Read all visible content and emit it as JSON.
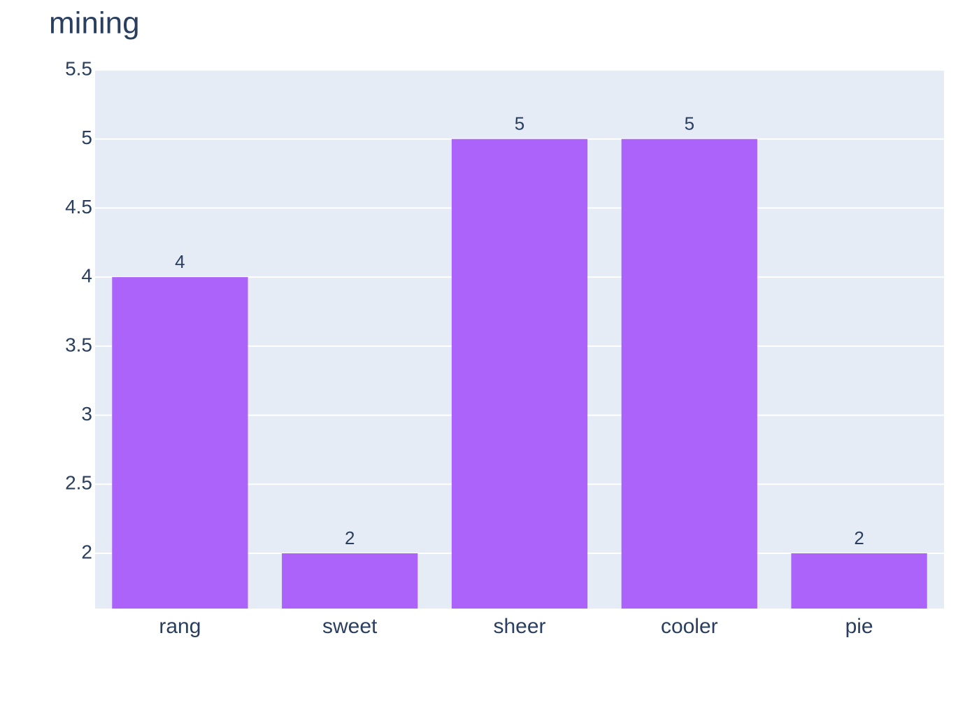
{
  "chart_data": {
    "type": "bar",
    "title": "mining",
    "categories": [
      "rang",
      "sweet",
      "sheer",
      "cooler",
      "pie"
    ],
    "values": [
      4,
      2,
      5,
      5,
      2
    ],
    "color": "#ab63fa",
    "ylim": [
      1.6,
      5.5
    ],
    "yticks": [
      2,
      2.5,
      3,
      3.5,
      4,
      4.5,
      5,
      5.5
    ],
    "grid": true
  }
}
